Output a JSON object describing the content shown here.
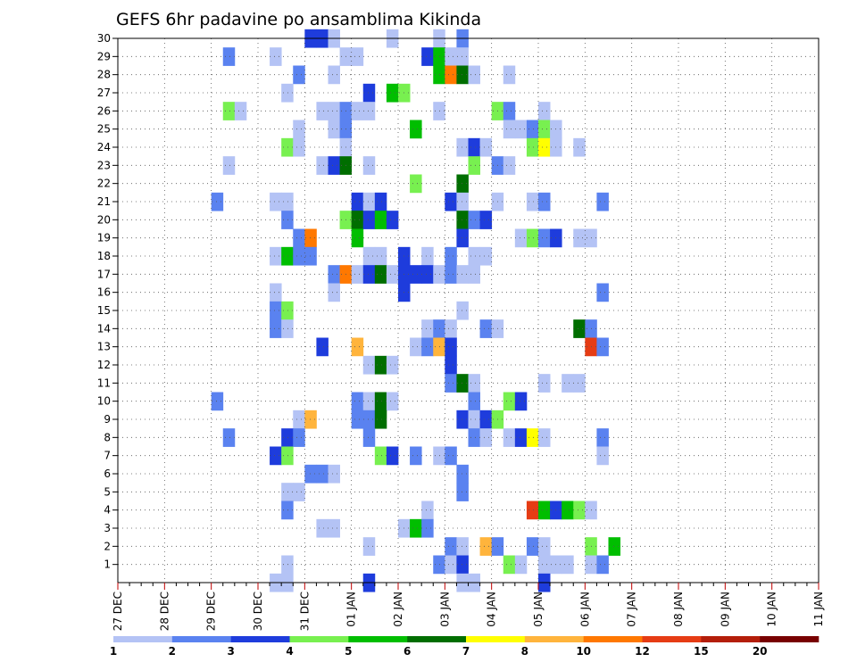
{
  "chart_data": {
    "type": "heatmap",
    "title": "GEFS 6hr padavine po ansamblima Kikinda",
    "y_members": [
      1,
      2,
      3,
      4,
      5,
      6,
      7,
      8,
      9,
      10,
      11,
      12,
      13,
      14,
      15,
      16,
      17,
      18,
      19,
      20,
      21,
      22,
      23,
      24,
      25,
      26,
      27,
      28,
      29,
      30
    ],
    "x_tick_labels": [
      "27 DEC",
      "28 DEC",
      "29 DEC",
      "30 DEC",
      "31 DEC",
      "01 JAN",
      "02 JAN",
      "03 JAN",
      "04 JAN",
      "05 JAN",
      "06 JAN",
      "07 JAN",
      "08 JAN",
      "09 JAN",
      "10 JAN",
      "11 JAN"
    ],
    "x_steps_per_day": 4,
    "grid": true,
    "legend": {
      "placement": "bottom",
      "labels": [
        "1",
        "2",
        "3",
        "4",
        "5",
        "6",
        "7",
        "8",
        "10",
        "12",
        "15",
        "20"
      ],
      "colors": [
        "#b4c3f5",
        "#5a82f0",
        "#1e3cdc",
        "#78f050",
        "#00be00",
        "#006e00",
        "#ffff00",
        "#ffb43c",
        "#ff7800",
        "#e63c14",
        "#b41e0a",
        "#780000"
      ]
    },
    "cells": [
      {
        "m": 30,
        "s": 16,
        "l": 3
      },
      {
        "m": 30,
        "s": 17,
        "l": 3
      },
      {
        "m": 30,
        "s": 18,
        "l": 1
      },
      {
        "m": 30,
        "s": 23,
        "l": 1
      },
      {
        "m": 30,
        "s": 27,
        "l": 1
      },
      {
        "m": 30,
        "s": 29,
        "l": 2
      },
      {
        "m": 29,
        "s": 9,
        "l": 2
      },
      {
        "m": 29,
        "s": 13,
        "l": 1
      },
      {
        "m": 29,
        "s": 19,
        "l": 1
      },
      {
        "m": 29,
        "s": 20,
        "l": 1
      },
      {
        "m": 29,
        "s": 26,
        "l": 3
      },
      {
        "m": 29,
        "s": 27,
        "l": 5
      },
      {
        "m": 29,
        "s": 28,
        "l": 1
      },
      {
        "m": 29,
        "s": 29,
        "l": 1
      },
      {
        "m": 28,
        "s": 15,
        "l": 2
      },
      {
        "m": 28,
        "s": 18,
        "l": 1
      },
      {
        "m": 28,
        "s": 27,
        "l": 5
      },
      {
        "m": 28,
        "s": 28,
        "l": 9
      },
      {
        "m": 28,
        "s": 29,
        "l": 6
      },
      {
        "m": 28,
        "s": 30,
        "l": 1
      },
      {
        "m": 28,
        "s": 33,
        "l": 1
      },
      {
        "m": 27,
        "s": 14,
        "l": 1
      },
      {
        "m": 27,
        "s": 21,
        "l": 3
      },
      {
        "m": 27,
        "s": 23,
        "l": 5
      },
      {
        "m": 27,
        "s": 24,
        "l": 4
      },
      {
        "m": 26,
        "s": 9,
        "l": 4
      },
      {
        "m": 26,
        "s": 10,
        "l": 1
      },
      {
        "m": 26,
        "s": 17,
        "l": 1
      },
      {
        "m": 26,
        "s": 18,
        "l": 1
      },
      {
        "m": 26,
        "s": 19,
        "l": 2
      },
      {
        "m": 26,
        "s": 20,
        "l": 1
      },
      {
        "m": 26,
        "s": 21,
        "l": 1
      },
      {
        "m": 26,
        "s": 27,
        "l": 1
      },
      {
        "m": 26,
        "s": 32,
        "l": 4
      },
      {
        "m": 26,
        "s": 33,
        "l": 2
      },
      {
        "m": 26,
        "s": 36,
        "l": 1
      },
      {
        "m": 25,
        "s": 15,
        "l": 1
      },
      {
        "m": 25,
        "s": 18,
        "l": 1
      },
      {
        "m": 25,
        "s": 19,
        "l": 2
      },
      {
        "m": 25,
        "s": 25,
        "l": 5
      },
      {
        "m": 25,
        "s": 33,
        "l": 1
      },
      {
        "m": 25,
        "s": 34,
        "l": 1
      },
      {
        "m": 25,
        "s": 35,
        "l": 2
      },
      {
        "m": 25,
        "s": 36,
        "l": 4
      },
      {
        "m": 25,
        "s": 37,
        "l": 1
      },
      {
        "m": 24,
        "s": 14,
        "l": 4
      },
      {
        "m": 24,
        "s": 15,
        "l": 1
      },
      {
        "m": 24,
        "s": 19,
        "l": 1
      },
      {
        "m": 24,
        "s": 29,
        "l": 1
      },
      {
        "m": 24,
        "s": 30,
        "l": 3
      },
      {
        "m": 24,
        "s": 31,
        "l": 1
      },
      {
        "m": 24,
        "s": 35,
        "l": 4
      },
      {
        "m": 24,
        "s": 36,
        "l": 7
      },
      {
        "m": 24,
        "s": 37,
        "l": 1
      },
      {
        "m": 24,
        "s": 39,
        "l": 1
      },
      {
        "m": 23,
        "s": 9,
        "l": 1
      },
      {
        "m": 23,
        "s": 17,
        "l": 1
      },
      {
        "m": 23,
        "s": 18,
        "l": 3
      },
      {
        "m": 23,
        "s": 19,
        "l": 6
      },
      {
        "m": 23,
        "s": 21,
        "l": 1
      },
      {
        "m": 23,
        "s": 30,
        "l": 4
      },
      {
        "m": 23,
        "s": 32,
        "l": 2
      },
      {
        "m": 23,
        "s": 33,
        "l": 1
      },
      {
        "m": 22,
        "s": 25,
        "l": 4
      },
      {
        "m": 22,
        "s": 29,
        "l": 6
      },
      {
        "m": 21,
        "s": 8,
        "l": 2
      },
      {
        "m": 21,
        "s": 13,
        "l": 1
      },
      {
        "m": 21,
        "s": 14,
        "l": 1
      },
      {
        "m": 21,
        "s": 20,
        "l": 3
      },
      {
        "m": 21,
        "s": 21,
        "l": 1
      },
      {
        "m": 21,
        "s": 22,
        "l": 3
      },
      {
        "m": 21,
        "s": 28,
        "l": 3
      },
      {
        "m": 21,
        "s": 29,
        "l": 1
      },
      {
        "m": 21,
        "s": 32,
        "l": 1
      },
      {
        "m": 21,
        "s": 35,
        "l": 1
      },
      {
        "m": 21,
        "s": 36,
        "l": 2
      },
      {
        "m": 21,
        "s": 41,
        "l": 2
      },
      {
        "m": 20,
        "s": 14,
        "l": 2
      },
      {
        "m": 20,
        "s": 19,
        "l": 4
      },
      {
        "m": 20,
        "s": 20,
        "l": 6
      },
      {
        "m": 20,
        "s": 21,
        "l": 3
      },
      {
        "m": 20,
        "s": 22,
        "l": 5
      },
      {
        "m": 20,
        "s": 23,
        "l": 3
      },
      {
        "m": 20,
        "s": 29,
        "l": 6
      },
      {
        "m": 20,
        "s": 30,
        "l": 2
      },
      {
        "m": 20,
        "s": 31,
        "l": 3
      },
      {
        "m": 19,
        "s": 15,
        "l": 2
      },
      {
        "m": 19,
        "s": 16,
        "l": 9
      },
      {
        "m": 19,
        "s": 20,
        "l": 5
      },
      {
        "m": 19,
        "s": 29,
        "l": 3
      },
      {
        "m": 19,
        "s": 34,
        "l": 1
      },
      {
        "m": 19,
        "s": 35,
        "l": 4
      },
      {
        "m": 19,
        "s": 36,
        "l": 2
      },
      {
        "m": 19,
        "s": 37,
        "l": 3
      },
      {
        "m": 19,
        "s": 39,
        "l": 1
      },
      {
        "m": 19,
        "s": 40,
        "l": 1
      },
      {
        "m": 18,
        "s": 13,
        "l": 1
      },
      {
        "m": 18,
        "s": 14,
        "l": 5
      },
      {
        "m": 18,
        "s": 15,
        "l": 2
      },
      {
        "m": 18,
        "s": 16,
        "l": 2
      },
      {
        "m": 18,
        "s": 21,
        "l": 1
      },
      {
        "m": 18,
        "s": 22,
        "l": 1
      },
      {
        "m": 18,
        "s": 24,
        "l": 3
      },
      {
        "m": 18,
        "s": 26,
        "l": 1
      },
      {
        "m": 18,
        "s": 28,
        "l": 2
      },
      {
        "m": 18,
        "s": 30,
        "l": 1
      },
      {
        "m": 18,
        "s": 31,
        "l": 1
      },
      {
        "m": 17,
        "s": 18,
        "l": 2
      },
      {
        "m": 17,
        "s": 19,
        "l": 9
      },
      {
        "m": 17,
        "s": 20,
        "l": 1
      },
      {
        "m": 17,
        "s": 21,
        "l": 3
      },
      {
        "m": 17,
        "s": 22,
        "l": 6
      },
      {
        "m": 17,
        "s": 23,
        "l": 1
      },
      {
        "m": 17,
        "s": 24,
        "l": 3
      },
      {
        "m": 17,
        "s": 25,
        "l": 3
      },
      {
        "m": 17,
        "s": 26,
        "l": 3
      },
      {
        "m": 17,
        "s": 27,
        "l": 1
      },
      {
        "m": 17,
        "s": 28,
        "l": 2
      },
      {
        "m": 17,
        "s": 29,
        "l": 1
      },
      {
        "m": 17,
        "s": 30,
        "l": 1
      },
      {
        "m": 16,
        "s": 13,
        "l": 1
      },
      {
        "m": 16,
        "s": 18,
        "l": 1
      },
      {
        "m": 16,
        "s": 24,
        "l": 3
      },
      {
        "m": 16,
        "s": 41,
        "l": 2
      },
      {
        "m": 15,
        "s": 13,
        "l": 2
      },
      {
        "m": 15,
        "s": 14,
        "l": 4
      },
      {
        "m": 15,
        "s": 29,
        "l": 1
      },
      {
        "m": 14,
        "s": 13,
        "l": 2
      },
      {
        "m": 14,
        "s": 14,
        "l": 1
      },
      {
        "m": 14,
        "s": 26,
        "l": 1
      },
      {
        "m": 14,
        "s": 27,
        "l": 2
      },
      {
        "m": 14,
        "s": 28,
        "l": 1
      },
      {
        "m": 14,
        "s": 31,
        "l": 2
      },
      {
        "m": 14,
        "s": 32,
        "l": 1
      },
      {
        "m": 14,
        "s": 39,
        "l": 6
      },
      {
        "m": 14,
        "s": 40,
        "l": 2
      },
      {
        "m": 13,
        "s": 17,
        "l": 3
      },
      {
        "m": 13,
        "s": 20,
        "l": 8
      },
      {
        "m": 13,
        "s": 25,
        "l": 1
      },
      {
        "m": 13,
        "s": 26,
        "l": 2
      },
      {
        "m": 13,
        "s": 27,
        "l": 8
      },
      {
        "m": 13,
        "s": 28,
        "l": 3
      },
      {
        "m": 13,
        "s": 40,
        "l": 10
      },
      {
        "m": 13,
        "s": 41,
        "l": 2
      },
      {
        "m": 12,
        "s": 21,
        "l": 1
      },
      {
        "m": 12,
        "s": 22,
        "l": 6
      },
      {
        "m": 12,
        "s": 23,
        "l": 1
      },
      {
        "m": 12,
        "s": 28,
        "l": 3
      },
      {
        "m": 11,
        "s": 28,
        "l": 2
      },
      {
        "m": 11,
        "s": 29,
        "l": 6
      },
      {
        "m": 11,
        "s": 30,
        "l": 1
      },
      {
        "m": 11,
        "s": 36,
        "l": 1
      },
      {
        "m": 11,
        "s": 38,
        "l": 1
      },
      {
        "m": 11,
        "s": 39,
        "l": 1
      },
      {
        "m": 10,
        "s": 8,
        "l": 2
      },
      {
        "m": 10,
        "s": 20,
        "l": 2
      },
      {
        "m": 10,
        "s": 21,
        "l": 1
      },
      {
        "m": 10,
        "s": 22,
        "l": 6
      },
      {
        "m": 10,
        "s": 23,
        "l": 1
      },
      {
        "m": 10,
        "s": 30,
        "l": 2
      },
      {
        "m": 10,
        "s": 33,
        "l": 4
      },
      {
        "m": 10,
        "s": 34,
        "l": 3
      },
      {
        "m": 9,
        "s": 15,
        "l": 1
      },
      {
        "m": 9,
        "s": 16,
        "l": 8
      },
      {
        "m": 9,
        "s": 20,
        "l": 2
      },
      {
        "m": 9,
        "s": 21,
        "l": 2
      },
      {
        "m": 9,
        "s": 22,
        "l": 6
      },
      {
        "m": 9,
        "s": 29,
        "l": 3
      },
      {
        "m": 9,
        "s": 30,
        "l": 1
      },
      {
        "m": 9,
        "s": 31,
        "l": 3
      },
      {
        "m": 9,
        "s": 32,
        "l": 4
      },
      {
        "m": 8,
        "s": 9,
        "l": 2
      },
      {
        "m": 8,
        "s": 14,
        "l": 3
      },
      {
        "m": 8,
        "s": 15,
        "l": 2
      },
      {
        "m": 8,
        "s": 21,
        "l": 2
      },
      {
        "m": 8,
        "s": 30,
        "l": 2
      },
      {
        "m": 8,
        "s": 31,
        "l": 1
      },
      {
        "m": 8,
        "s": 33,
        "l": 1
      },
      {
        "m": 8,
        "s": 34,
        "l": 3
      },
      {
        "m": 8,
        "s": 35,
        "l": 7
      },
      {
        "m": 8,
        "s": 36,
        "l": 1
      },
      {
        "m": 8,
        "s": 41,
        "l": 2
      },
      {
        "m": 7,
        "s": 13,
        "l": 3
      },
      {
        "m": 7,
        "s": 14,
        "l": 4
      },
      {
        "m": 7,
        "s": 22,
        "l": 4
      },
      {
        "m": 7,
        "s": 23,
        "l": 3
      },
      {
        "m": 7,
        "s": 25,
        "l": 2
      },
      {
        "m": 7,
        "s": 27,
        "l": 1
      },
      {
        "m": 7,
        "s": 28,
        "l": 2
      },
      {
        "m": 7,
        "s": 41,
        "l": 1
      },
      {
        "m": 6,
        "s": 16,
        "l": 2
      },
      {
        "m": 6,
        "s": 17,
        "l": 2
      },
      {
        "m": 6,
        "s": 18,
        "l": 1
      },
      {
        "m": 6,
        "s": 29,
        "l": 2
      },
      {
        "m": 5,
        "s": 14,
        "l": 1
      },
      {
        "m": 5,
        "s": 15,
        "l": 1
      },
      {
        "m": 5,
        "s": 29,
        "l": 2
      },
      {
        "m": 4,
        "s": 14,
        "l": 2
      },
      {
        "m": 4,
        "s": 26,
        "l": 1
      },
      {
        "m": 4,
        "s": 35,
        "l": 10
      },
      {
        "m": 4,
        "s": 36,
        "l": 5
      },
      {
        "m": 4,
        "s": 37,
        "l": 3
      },
      {
        "m": 4,
        "s": 38,
        "l": 5
      },
      {
        "m": 4,
        "s": 39,
        "l": 4
      },
      {
        "m": 4,
        "s": 40,
        "l": 1
      },
      {
        "m": 3,
        "s": 17,
        "l": 1
      },
      {
        "m": 3,
        "s": 18,
        "l": 1
      },
      {
        "m": 3,
        "s": 24,
        "l": 1
      },
      {
        "m": 3,
        "s": 25,
        "l": 5
      },
      {
        "m": 3,
        "s": 26,
        "l": 2
      },
      {
        "m": 2,
        "s": 21,
        "l": 1
      },
      {
        "m": 2,
        "s": 28,
        "l": 2
      },
      {
        "m": 2,
        "s": 29,
        "l": 1
      },
      {
        "m": 2,
        "s": 31,
        "l": 8
      },
      {
        "m": 2,
        "s": 32,
        "l": 2
      },
      {
        "m": 2,
        "s": 35,
        "l": 2
      },
      {
        "m": 2,
        "s": 36,
        "l": 1
      },
      {
        "m": 2,
        "s": 40,
        "l": 4
      },
      {
        "m": 2,
        "s": 42,
        "l": 5
      },
      {
        "m": 1,
        "s": 14,
        "l": 1
      },
      {
        "m": 1,
        "s": 27,
        "l": 2
      },
      {
        "m": 1,
        "s": 28,
        "l": 1
      },
      {
        "m": 1,
        "s": 29,
        "l": 3
      },
      {
        "m": 1,
        "s": 33,
        "l": 4
      },
      {
        "m": 1,
        "s": 34,
        "l": 1
      },
      {
        "m": 1,
        "s": 36,
        "l": 1
      },
      {
        "m": 1,
        "s": 37,
        "l": 1
      },
      {
        "m": 1,
        "s": 38,
        "l": 1
      },
      {
        "m": 1,
        "s": 40,
        "l": 1
      },
      {
        "m": 1,
        "s": 41,
        "l": 2
      },
      {
        "m": 0,
        "s": 13,
        "l": 1
      },
      {
        "m": 0,
        "s": 14,
        "l": 1
      },
      {
        "m": 0,
        "s": 21,
        "l": 3
      },
      {
        "m": 0,
        "s": 29,
        "l": 1
      },
      {
        "m": 0,
        "s": 30,
        "l": 1
      },
      {
        "m": 0,
        "s": 36,
        "l": 3
      }
    ]
  }
}
